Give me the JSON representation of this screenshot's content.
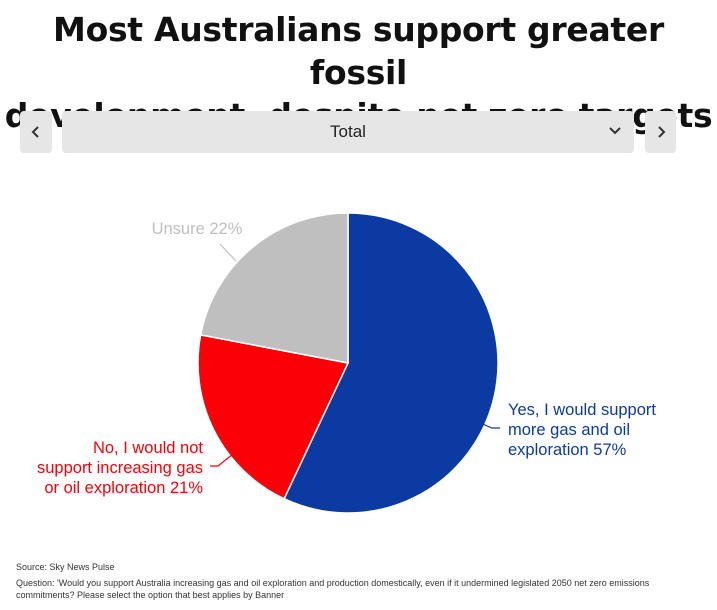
{
  "header": {
    "title_line1": "Most Australians support greater fossil",
    "title_line2": "development, despite net zero targets"
  },
  "controls": {
    "selected": "Total"
  },
  "chart_data": {
    "type": "pie",
    "title": "Most Australians support greater fossil development, despite net zero targets",
    "slices": [
      {
        "label": "Yes, I would support more gas and oil exploration",
        "value": 57,
        "color": "#0b3aa2",
        "label_lines": [
          "Yes, I would support",
          "more gas and oil",
          "exploration 57%"
        ]
      },
      {
        "label": "No, I would not support increasing gas or oil exploration",
        "value": 21,
        "color": "#fb0007",
        "label_lines": [
          "No, I would not",
          "support increasing gas",
          "or oil exploration 21%"
        ]
      },
      {
        "label": "Unsure",
        "value": 22,
        "color": "#bfbfbf",
        "label_lines": [
          "Unsure 22%"
        ]
      }
    ],
    "start": "top",
    "direction": "clockwise"
  },
  "footer": {
    "source": "Source: Sky News Pulse",
    "question": "Question: 'Would you support Australia increasing gas and oil exploration and production domestically, even if it undermined legislated 2050 net zero emissions commitments? Please select the option that best applies by Banner"
  }
}
